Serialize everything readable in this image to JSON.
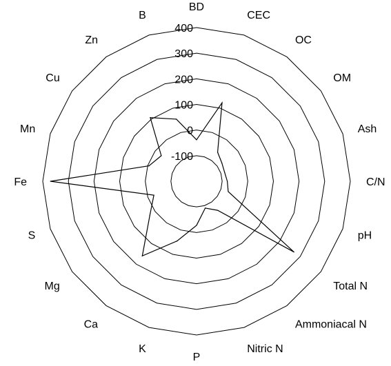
{
  "chart_data": {
    "type": "radar",
    "categories": [
      "BD",
      "CEC",
      "OC",
      "OM",
      "Ash",
      "C/N",
      "pH",
      "Total N",
      "Ammoniacal N",
      "Nitric N",
      "P",
      "K",
      "Ca",
      "Mg",
      "S",
      "Fe",
      "Mn",
      "Cu",
      "Zn",
      "B"
    ],
    "rlim": [
      -200,
      400
    ],
    "ticks": [
      -100,
      0,
      100,
      200,
      300,
      400
    ],
    "tick_labels": [
      "-100",
      "0",
      "100",
      "200",
      "300",
      "400"
    ],
    "grid": true,
    "series": [
      {
        "values": [
          -38,
          122,
          -60,
          -78,
          -85,
          -80,
          -70,
          270,
          -60,
          -90,
          -28,
          45,
          160,
          25,
          -25,
          370,
          -5,
          -30,
          107,
          55
        ]
      }
    ]
  }
}
